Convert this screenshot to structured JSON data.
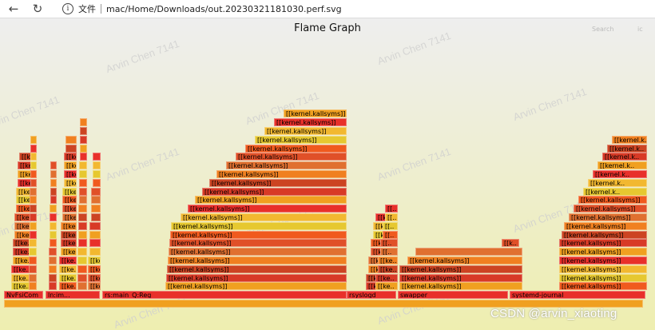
{
  "browser": {
    "back_icon": "arrow-left-icon",
    "reload_icon": "reload-icon",
    "info_icon": "info-icon",
    "file_label": "文件",
    "url": "mac/Home/Downloads/out.20230321181030.perf.svg"
  },
  "flamegraph": {
    "title": "Flame Graph",
    "search_label": "Search",
    "ic_label": "ic",
    "watermark_text": "Arvin Chen 7141",
    "bottom_label": "CSDN @arvin_xiaoting",
    "kernel_label": "[[kernel.kallsyms]]",
    "root_processes": [
      "NvFsiCom",
      "ln:im...",
      "rs:main_Q:Reg",
      "rsyslogd",
      "swapper",
      "systemd-journal"
    ],
    "colors": {
      "red": "#e8302a",
      "orange": "#f08020",
      "yellow": "#e6c830",
      "amber": "#f0a020",
      "background_top": "#eeeeee",
      "background_bottom": "#eeeeb0"
    }
  }
}
